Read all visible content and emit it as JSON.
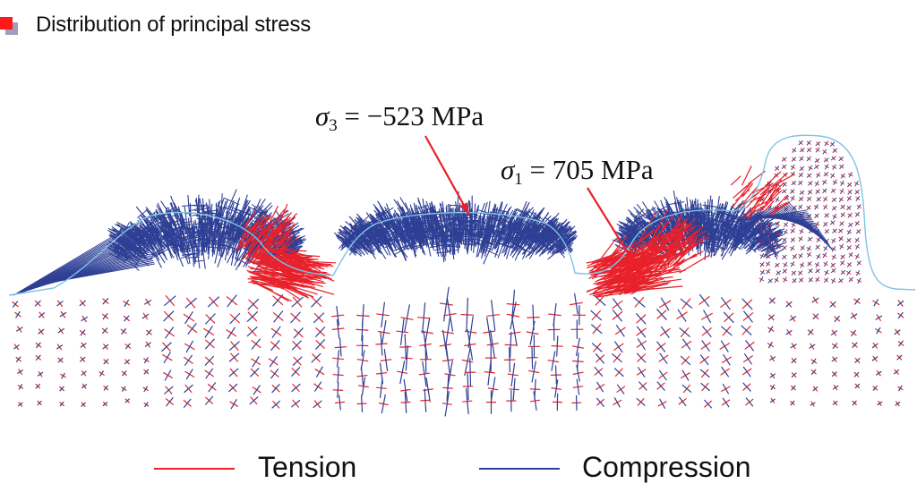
{
  "header": {
    "title": "Distribution of principal stress",
    "bullet_colors": [
      "#ff1a1a",
      "#8a8fb0"
    ]
  },
  "annotations": [
    {
      "id": "sigma3",
      "symbol": "σ",
      "subscript": "3",
      "text": " = −523 MPa"
    },
    {
      "id": "sigma1",
      "symbol": "σ",
      "subscript": "1",
      "text": " = 705 MPa"
    }
  ],
  "legend": {
    "tension": {
      "label": "Tension",
      "color": "#e8212b"
    },
    "compression": {
      "label": "Compression",
      "color": "#2e3f95"
    }
  },
  "colors": {
    "surface": "#7ec3e8",
    "arrow": "#e8212b"
  }
}
